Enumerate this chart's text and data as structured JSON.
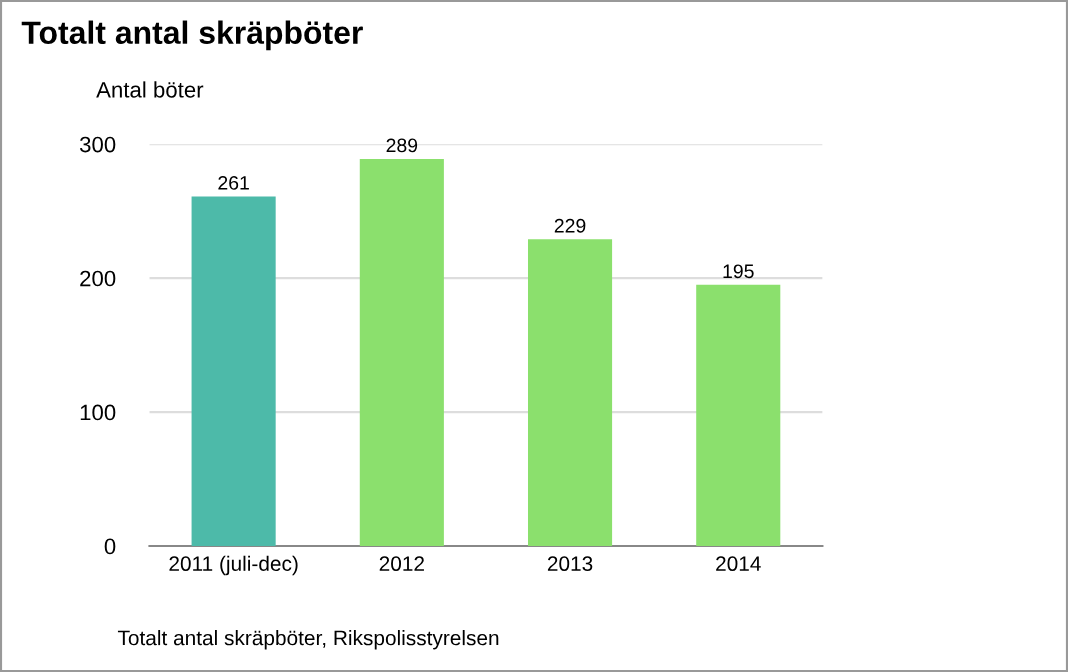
{
  "chart_data": {
    "type": "bar",
    "title": "Totalt antal skräpböter",
    "ylabel": "Antal böter",
    "categories": [
      "2011 (juli-dec)",
      "2012",
      "2013",
      "2014"
    ],
    "values": [
      261,
      289,
      229,
      195
    ],
    "colors": [
      "#4dbaa9",
      "#8be06d",
      "#8be06d",
      "#8be06d"
    ],
    "ylim": [
      0,
      300
    ],
    "yticks": [
      0,
      100,
      200,
      300
    ],
    "grid": "y",
    "data_labels": true,
    "annotations": [
      "Totalt antal skräpböter, Rikspolisstyrelsen"
    ]
  }
}
